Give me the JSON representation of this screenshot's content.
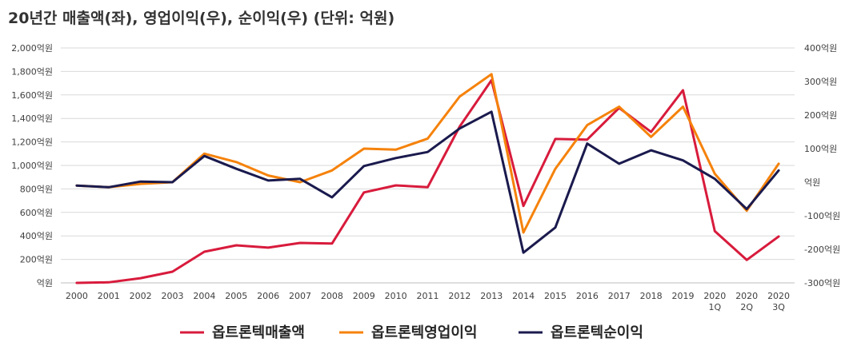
{
  "chart_data": {
    "type": "line",
    "title": "20년간 매출액(좌), 영업이익(우), 순이익(우) (단위: 억원)",
    "categories": [
      "2000",
      "2001",
      "2002",
      "2003",
      "2004",
      "2005",
      "2006",
      "2007",
      "2008",
      "2009",
      "2010",
      "2011",
      "2012",
      "2013",
      "2014",
      "2015",
      "2016",
      "2017",
      "2018",
      "2019",
      "2020\n1Q",
      "2020\n2Q",
      "2020\n3Q"
    ],
    "y_left": {
      "range": [
        0,
        2000
      ],
      "tick_labels": [
        "억원",
        "200억원",
        "400억원",
        "600억원",
        "800억원",
        "1,000억원",
        "1,200억원",
        "1,400억원",
        "1,600억원",
        "1,800억원",
        "2,000억원"
      ]
    },
    "y_right": {
      "range": [
        -300,
        400
      ],
      "tick_labels": [
        "-300억원",
        "-200억원",
        "-100억원",
        "억원",
        "100억원",
        "200억원",
        "300억원",
        "400억원"
      ]
    },
    "grid": "horizontal",
    "legend_position": "bottom",
    "series": [
      {
        "name": "옵트론텍매출액",
        "axis": "left",
        "color": "#d81b3c",
        "values": [
          0,
          5,
          40,
          95,
          265,
          320,
          300,
          340,
          335,
          770,
          830,
          815,
          1330,
          1725,
          655,
          1225,
          1220,
          1490,
          1285,
          1640,
          440,
          195,
          395
        ]
      },
      {
        "name": "옵트론텍영업이익",
        "axis": "right",
        "color": "#f5820b",
        "values": [
          -10,
          -15,
          -5,
          0,
          85,
          60,
          20,
          0,
          35,
          100,
          97,
          130,
          255,
          322,
          -150,
          40,
          170,
          225,
          135,
          225,
          25,
          -85,
          55
        ]
      },
      {
        "name": "옵트론텍순이익",
        "axis": "right",
        "color": "#1a1a4e",
        "values": [
          -10,
          -15,
          2,
          0,
          78,
          40,
          5,
          10,
          -45,
          48,
          72,
          90,
          160,
          210,
          -210,
          -135,
          115,
          55,
          95,
          65,
          10,
          -80,
          35
        ]
      }
    ]
  }
}
